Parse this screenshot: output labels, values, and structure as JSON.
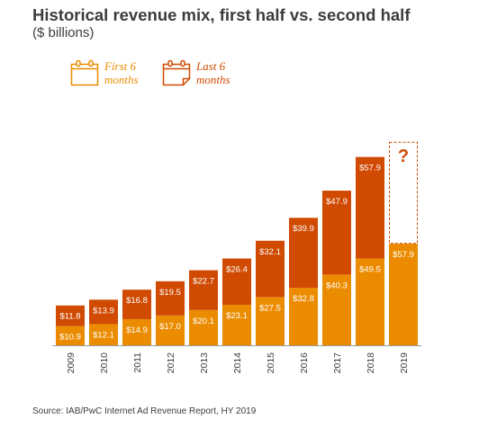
{
  "title": "Historical revenue mix, first half vs. second half",
  "subtitle": "($ billions)",
  "source": "Source: IAB/PwC Internet Ad Revenue Report, HY 2019",
  "legend": {
    "first": "First 6 months",
    "last": "Last 6 months"
  },
  "colors": {
    "first_half": "#eb8c00",
    "second_half": "#d04a02",
    "axis": "#999999"
  },
  "chart_data": {
    "type": "bar",
    "stacked": true,
    "title": "Historical revenue mix, first half vs. second half",
    "subtitle": "($ billions)",
    "xlabel": "",
    "ylabel": "",
    "ylim": [
      0,
      120
    ],
    "categories": [
      "2009",
      "2010",
      "2011",
      "2012",
      "2013",
      "2014",
      "2015",
      "2016",
      "2017",
      "2018",
      "2019"
    ],
    "series": [
      {
        "name": "First 6 months",
        "values": [
          10.9,
          12.1,
          14.9,
          17.0,
          20.1,
          23.1,
          27.5,
          32.8,
          40.3,
          49.5,
          57.9
        ],
        "labels": [
          "$10.9",
          "$12.1",
          "$14.9",
          "$17.0",
          "$20.1",
          "$23.1",
          "$27.5",
          "$32.8",
          "$40.3",
          "$49.5",
          "$57.9"
        ]
      },
      {
        "name": "Last 6 months",
        "values": [
          11.8,
          13.9,
          16.8,
          19.5,
          22.7,
          26.4,
          32.1,
          39.9,
          47.9,
          57.9,
          null
        ],
        "labels": [
          "$11.8",
          "$13.9",
          "$16.8",
          "$19.5",
          "$22.7",
          "$26.4",
          "$32.1",
          "$39.9",
          "$47.9",
          "$57.9",
          ""
        ]
      }
    ],
    "placeholder": {
      "category": "2019",
      "label": "?",
      "style": "dashed outline"
    },
    "grid": false,
    "legend_position": "top-left"
  }
}
